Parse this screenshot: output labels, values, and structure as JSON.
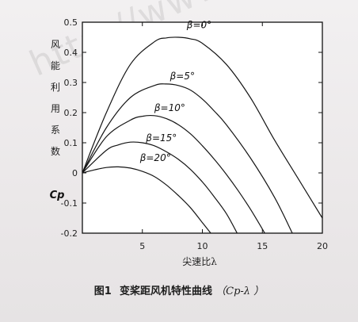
{
  "caption": {
    "fig_num": "图1",
    "title": "变桨距风机特性曲线",
    "variable": "（Cp-λ ）"
  },
  "watermark": "http://www.ixueshu",
  "chart_data": {
    "type": "line",
    "xlabel": "尖速比λ",
    "ylabel_chars": [
      "风",
      "能",
      "利",
      "用",
      "系",
      "数"
    ],
    "ylabel_symbol": "Cp",
    "xlim": [
      0,
      20
    ],
    "ylim": [
      -0.2,
      0.5
    ],
    "xticks": [
      "5",
      "10",
      "15",
      "20"
    ],
    "yticks": [
      "0.5",
      "0.4",
      "0.3",
      "0.2",
      "0.1",
      "0",
      "-0.1",
      "-0.2"
    ],
    "grid": false,
    "series": [
      {
        "name": "β=0°",
        "x": [
          0,
          2,
          4,
          6,
          7,
          8,
          9,
          10,
          12,
          14,
          16,
          18,
          20
        ],
        "y": [
          0,
          0.2,
          0.36,
          0.435,
          0.448,
          0.45,
          0.445,
          0.43,
          0.36,
          0.25,
          0.11,
          -0.02,
          -0.15
        ]
      },
      {
        "name": "β=5°",
        "x": [
          0,
          2,
          4,
          6,
          7,
          8,
          9,
          10,
          11,
          12,
          14,
          16,
          17.5
        ],
        "y": [
          0,
          0.15,
          0.25,
          0.29,
          0.295,
          0.29,
          0.275,
          0.245,
          0.205,
          0.16,
          0.05,
          -0.08,
          -0.2
        ]
      },
      {
        "name": "β=10°",
        "x": [
          0,
          2,
          4,
          5,
          6,
          7,
          8,
          9,
          10,
          11,
          12,
          13,
          14,
          15.2
        ],
        "y": [
          0,
          0.12,
          0.175,
          0.188,
          0.19,
          0.18,
          0.16,
          0.13,
          0.09,
          0.045,
          -0.005,
          -0.06,
          -0.12,
          -0.2
        ]
      },
      {
        "name": "β=15°",
        "x": [
          0,
          2,
          3,
          4,
          5,
          6,
          7,
          8,
          9,
          10,
          11,
          12,
          12.9
        ],
        "y": [
          0,
          0.075,
          0.093,
          0.102,
          0.1,
          0.09,
          0.07,
          0.045,
          0.012,
          -0.03,
          -0.08,
          -0.135,
          -0.2
        ]
      },
      {
        "name": "β=20°",
        "x": [
          0,
          1,
          2,
          3,
          4,
          5,
          6,
          7,
          8,
          9,
          10,
          10.7
        ],
        "y": [
          0,
          0.01,
          0.018,
          0.02,
          0.016,
          0.005,
          -0.012,
          -0.04,
          -0.075,
          -0.115,
          -0.165,
          -0.2
        ]
      }
    ],
    "curve_labels": [
      {
        "text": "β=0°",
        "x": 8.7,
        "y": 0.48
      },
      {
        "text": "β=5°",
        "x": 7.3,
        "y": 0.31
      },
      {
        "text": "β=10°",
        "x": 6.0,
        "y": 0.205
      },
      {
        "text": "β=15°",
        "x": 5.3,
        "y": 0.105
      },
      {
        "text": "β=20°",
        "x": 4.8,
        "y": 0.04
      }
    ]
  }
}
